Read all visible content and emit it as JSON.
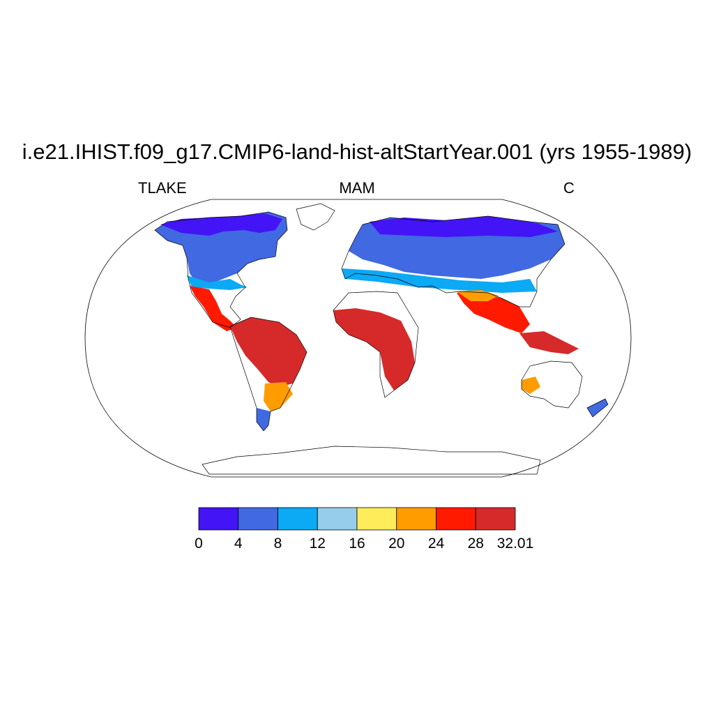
{
  "title": "i.e21.IHIST.f09_g17.CMIP6-land-hist-altStartYear.001 (yrs 1955-1989)",
  "left_label": "TLAKE",
  "center_label": "MAM",
  "right_label": "C",
  "colorbar": {
    "labels": [
      "0",
      "4",
      "8",
      "12",
      "16",
      "20",
      "24",
      "28",
      "32.01"
    ],
    "colors": [
      "#4314f5",
      "#4169e1",
      "#0ca9f5",
      "#96cdea",
      "#ffec5a",
      "#ff9c00",
      "#ff1a00",
      "#d62a2a"
    ]
  }
}
